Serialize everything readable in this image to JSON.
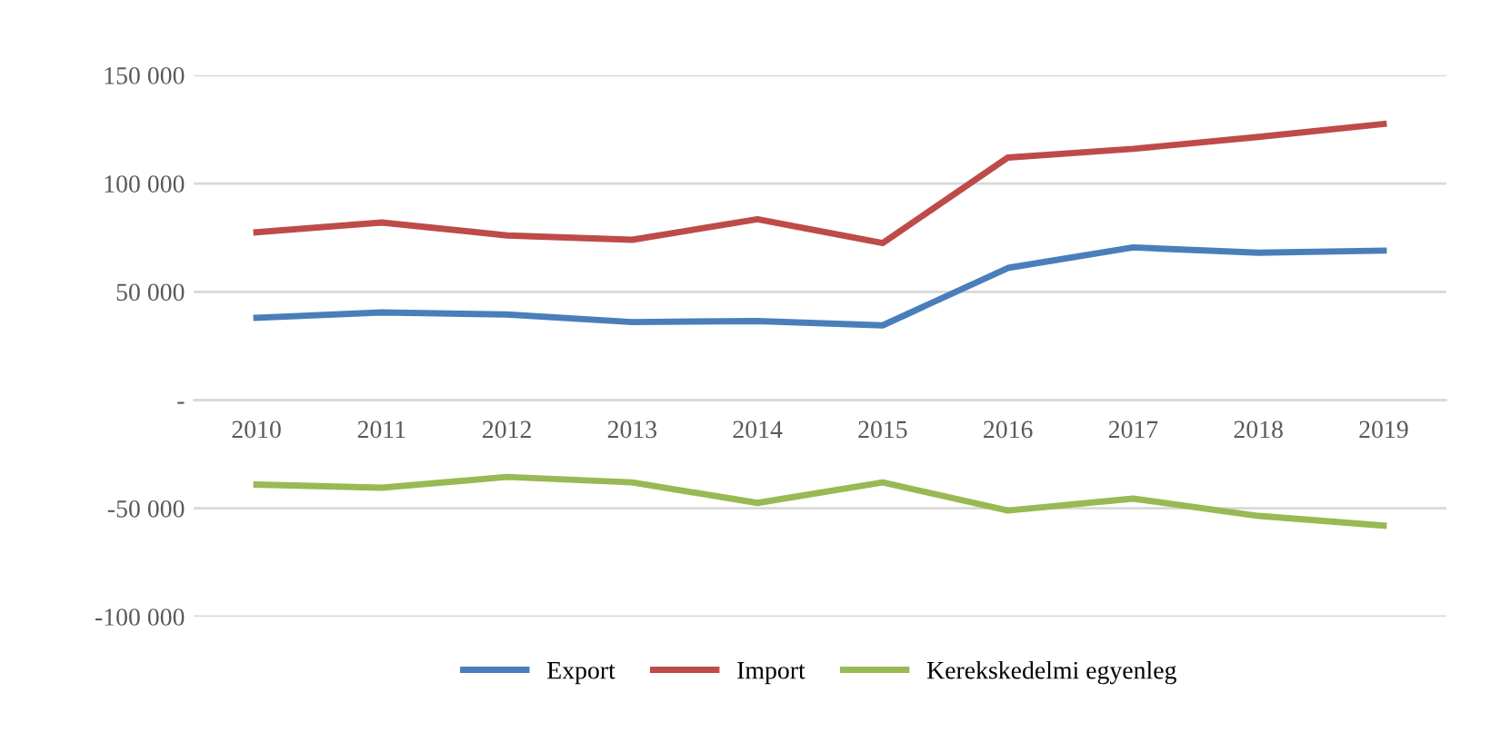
{
  "chart_data": {
    "type": "line",
    "categories": [
      "2010",
      "2011",
      "2012",
      "2013",
      "2014",
      "2015",
      "2016",
      "2017",
      "2018",
      "2019"
    ],
    "series": [
      {
        "name": "Export",
        "color": "#4a7ebb",
        "values": [
          38000,
          40500,
          39500,
          36000,
          36500,
          34500,
          61000,
          70500,
          68000,
          69000
        ]
      },
      {
        "name": "Import",
        "color": "#be4b48",
        "values": [
          77500,
          82000,
          76000,
          74000,
          83500,
          72500,
          112000,
          116000,
          121500,
          127500
        ]
      },
      {
        "name": "Kerekskedelmi egyenleg",
        "color": "#98b954",
        "values": [
          -39000,
          -40500,
          -35500,
          -38000,
          -47500,
          -38000,
          -51000,
          -45500,
          -53500,
          -58000
        ]
      }
    ],
    "ylim": [
      -100000,
      150000
    ],
    "yticks": [
      {
        "value": -100000,
        "label": "-100 000"
      },
      {
        "value": -50000,
        "label": "-50 000"
      },
      {
        "value": 0,
        "label": "-"
      },
      {
        "value": 50000,
        "label": "50 000"
      },
      {
        "value": 100000,
        "label": "100 000"
      },
      {
        "value": 150000,
        "label": "150 000"
      }
    ],
    "grid": "y",
    "legend": "bottom",
    "marker": "none",
    "line_style": "solid"
  }
}
